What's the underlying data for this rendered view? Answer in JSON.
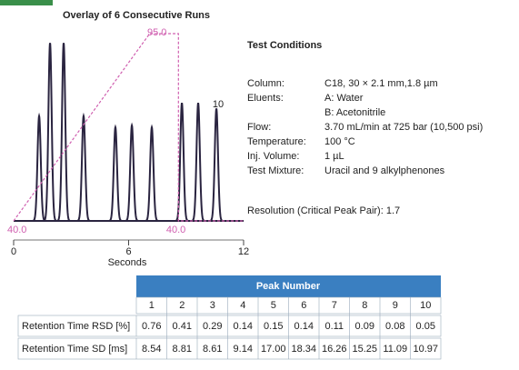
{
  "chart_data": {
    "type": "chromatogram",
    "title": "Overlay of 6 Consecutive Runs",
    "x": [
      1.33,
      1.9,
      2.61,
      3.65,
      5.31,
      6.17,
      7.21,
      8.78,
      9.63,
      10.58
    ],
    "values": [
      56,
      95,
      95,
      56,
      50,
      51,
      50,
      63,
      63,
      60
    ],
    "color": "#2a2440",
    "ylim": [
      0,
      100
    ],
    "xlim": [
      0,
      12
    ],
    "xticks": [
      0,
      6,
      12
    ],
    "xlabel": "Seconds",
    "annotation": "10",
    "gradient": {
      "color": "#d060b0",
      "axis": "y2",
      "x": [
        0,
        7.1,
        8.6,
        8.6,
        12
      ],
      "values": [
        40,
        95,
        95,
        40,
        40
      ],
      "value_labels": [
        "40.0",
        "95.0",
        null,
        "40.0",
        null
      ]
    },
    "y2lim": [
      40,
      95
    ]
  },
  "test_conditions": {
    "title": "Test Conditions",
    "rows": [
      {
        "label": "Column:",
        "values": [
          "C18, 30 × 2.1 mm,1.8 µm"
        ]
      },
      {
        "label": "Eluents:",
        "values": [
          "A: Water",
          "B: Acetonitrile"
        ]
      },
      {
        "label": "Flow:",
        "values": [
          "3.70 mL/min at 725 bar (10,500 psi)"
        ]
      },
      {
        "label": "Temperature:",
        "values": [
          "100 °C"
        ]
      },
      {
        "label": "Inj. Volume:",
        "values": [
          "1 µL"
        ]
      },
      {
        "label": "Test Mixture:",
        "values": [
          "Uracil and 9 alkylphenones"
        ]
      }
    ],
    "resolution": "Resolution (Critical Peak Pair): 1.7"
  },
  "table": {
    "header": "Peak Number",
    "columns": [
      1,
      2,
      3,
      4,
      5,
      6,
      7,
      8,
      9,
      10
    ],
    "rows": [
      {
        "label": "Retention Time RSD [%]",
        "values": [
          "0.76",
          "0.41",
          "0.29",
          "0.14",
          "0.15",
          "0.14",
          "0.11",
          "0.09",
          "0.08",
          "0.05"
        ]
      },
      {
        "label": "Retention Time SD [ms]",
        "values": [
          "8.54",
          "8.81",
          "8.61",
          "9.14",
          "17.00",
          "18.34",
          "16.26",
          "15.25",
          "11.09",
          "10.97"
        ]
      }
    ]
  }
}
